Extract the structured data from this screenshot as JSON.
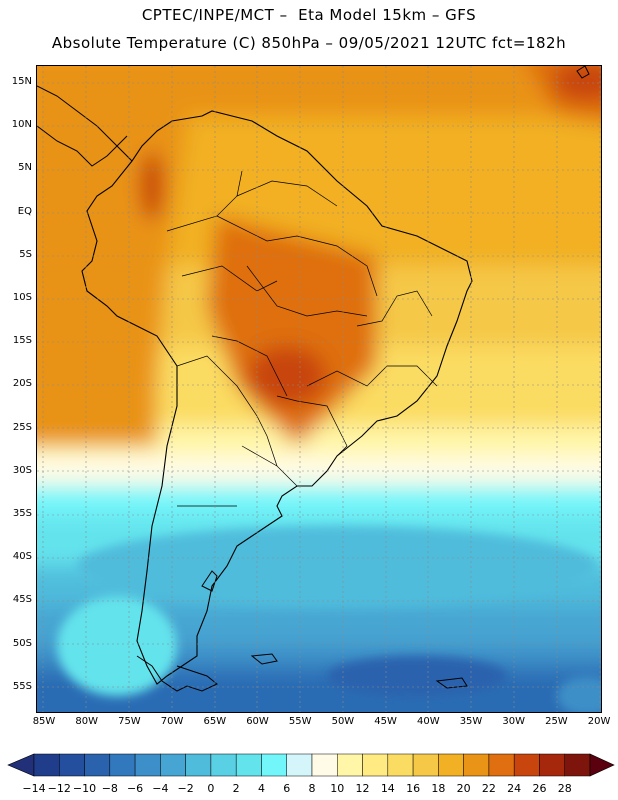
{
  "header": {
    "line1": "CPTEC/INPE/MCT –  Eta Model 15km – GFS",
    "line2": "Absolute Temperature (C) 850hPa – 09/05/2021 12UTC fct=182h"
  },
  "map": {
    "lat_labels": [
      "15N",
      "10N",
      "5N",
      "EQ",
      "5S",
      "10S",
      "15S",
      "20S",
      "25S",
      "30S",
      "35S",
      "40S",
      "45S",
      "50S",
      "55S"
    ],
    "lon_labels": [
      "85W",
      "80W",
      "75W",
      "70W",
      "65W",
      "60W",
      "55W",
      "50W",
      "45W",
      "40W",
      "35W",
      "30W",
      "25W",
      "20W"
    ],
    "extent": {
      "lon_min": -85.7,
      "lon_max": -19.5,
      "lat_min": -58.0,
      "lat_max": 16.5
    }
  },
  "colorbar": {
    "labels": [
      "-14",
      "-12",
      "-10",
      "-8",
      "-6",
      "-4",
      "-2",
      "0",
      "2",
      "4",
      "6",
      "8",
      "10",
      "12",
      "14",
      "16",
      "18",
      "20",
      "22",
      "24",
      "26",
      "28"
    ],
    "colors": [
      "#1f3d8a",
      "#234f9e",
      "#2a62ad",
      "#3178bd",
      "#3c8fc8",
      "#46a5d2",
      "#50bcdc",
      "#5ad0e4",
      "#63e3ec",
      "#73f6fa",
      "#d4f6fb",
      "#fffbe6",
      "#fff6a8",
      "#ffeb82",
      "#fbdc62",
      "#f5c847",
      "#f2b024",
      "#e99317",
      "#df6f10",
      "#c8450d",
      "#a6280c",
      "#7d150c"
    ],
    "under_color": "#22307a",
    "over_color": "#5a000e"
  }
}
